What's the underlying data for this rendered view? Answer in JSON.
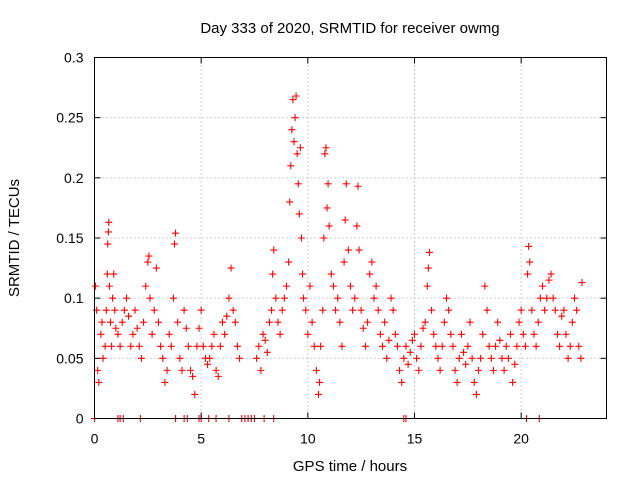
{
  "chart_data": {
    "type": "scatter",
    "title": "Day 333 of 2020, SRMTID for receiver owmg",
    "xlabel": "GPS time / hours",
    "ylabel": "SRMTID / TECUs",
    "xlim": [
      0,
      24
    ],
    "ylim": [
      0,
      0.3
    ],
    "xticks": [
      0,
      5,
      10,
      15,
      20
    ],
    "xtick_labels": [
      "0",
      "5",
      "10",
      "15",
      "20"
    ],
    "yticks": [
      0,
      0.05,
      0.1,
      0.15,
      0.2,
      0.25,
      0.3
    ],
    "ytick_labels": [
      "0",
      "0.05",
      "0.1",
      "0.15",
      "0.2",
      "0.25",
      "0.3"
    ],
    "grid": true,
    "marker": "+",
    "color": "#ff0000",
    "series": [
      {
        "name": "SRMTID",
        "points": [
          [
            0.05,
            0.11
          ],
          [
            0.1,
            0.09
          ],
          [
            0.15,
            0.04
          ],
          [
            0.2,
            0.03
          ],
          [
            0.3,
            0.07
          ],
          [
            0.35,
            0.08
          ],
          [
            0.4,
            0.05
          ],
          [
            0.5,
            0.06
          ],
          [
            0.55,
            0.09
          ],
          [
            0.6,
            0.12
          ],
          [
            0.62,
            0.145
          ],
          [
            0.65,
            0.155
          ],
          [
            0.67,
            0.163
          ],
          [
            0.7,
            0.11
          ],
          [
            0.75,
            0.08
          ],
          [
            0.8,
            0.06
          ],
          [
            0.85,
            0.1
          ],
          [
            0.9,
            0.12
          ],
          [
            0.95,
            0.09
          ],
          [
            1.0,
            0.075
          ],
          [
            1.1,
            0.07
          ],
          [
            1.2,
            0.06
          ],
          [
            1.3,
            0.08
          ],
          [
            1.4,
            0.09
          ],
          [
            1.5,
            0.1
          ],
          [
            1.6,
            0.085
          ],
          [
            1.7,
            0.06
          ],
          [
            1.8,
            0.07
          ],
          [
            1.9,
            0.09
          ],
          [
            2.0,
            0.075
          ],
          [
            2.1,
            0.06
          ],
          [
            2.2,
            0.05
          ],
          [
            2.3,
            0.08
          ],
          [
            2.4,
            0.11
          ],
          [
            2.5,
            0.13
          ],
          [
            2.55,
            0.135
          ],
          [
            2.6,
            0.1
          ],
          [
            2.7,
            0.07
          ],
          [
            2.8,
            0.09
          ],
          [
            2.9,
            0.125
          ],
          [
            3.0,
            0.08
          ],
          [
            3.1,
            0.06
          ],
          [
            3.2,
            0.05
          ],
          [
            3.3,
            0.03
          ],
          [
            3.4,
            0.04
          ],
          [
            3.5,
            0.07
          ],
          [
            3.6,
            0.06
          ],
          [
            3.7,
            0.1
          ],
          [
            3.75,
            0.145
          ],
          [
            3.8,
            0.154
          ],
          [
            3.9,
            0.08
          ],
          [
            4.0,
            0.05
          ],
          [
            4.1,
            0.04
          ],
          [
            4.2,
            0.09
          ],
          [
            4.3,
            0.075
          ],
          [
            4.4,
            0.06
          ],
          [
            4.5,
            0.04
          ],
          [
            4.6,
            0.035
          ],
          [
            4.7,
            0.02
          ],
          [
            4.8,
            0.06
          ],
          [
            4.9,
            0.075
          ],
          [
            5.0,
            0.09
          ],
          [
            5.1,
            0.06
          ],
          [
            5.2,
            0.05
          ],
          [
            5.3,
            0.045
          ],
          [
            5.4,
            0.05
          ],
          [
            5.5,
            0.06
          ],
          [
            5.6,
            0.07
          ],
          [
            5.7,
            0.04
          ],
          [
            5.8,
            0.035
          ],
          [
            5.9,
            0.06
          ],
          [
            6.0,
            0.08
          ],
          [
            6.1,
            0.07
          ],
          [
            6.2,
            0.085
          ],
          [
            6.3,
            0.1
          ],
          [
            6.4,
            0.125
          ],
          [
            6.5,
            0.09
          ],
          [
            6.6,
            0.08
          ],
          [
            6.7,
            0.06
          ],
          [
            6.8,
            0.05
          ],
          [
            7.6,
            0.05
          ],
          [
            7.7,
            0.06
          ],
          [
            7.8,
            0.04
          ],
          [
            7.9,
            0.07
          ],
          [
            8.0,
            0.065
          ],
          [
            8.1,
            0.055
          ],
          [
            8.2,
            0.08
          ],
          [
            8.3,
            0.09
          ],
          [
            8.35,
            0.12
          ],
          [
            8.4,
            0.14
          ],
          [
            8.5,
            0.1
          ],
          [
            8.6,
            0.08
          ],
          [
            8.7,
            0.07
          ],
          [
            8.8,
            0.09
          ],
          [
            8.9,
            0.1
          ],
          [
            9.0,
            0.11
          ],
          [
            9.1,
            0.13
          ],
          [
            9.15,
            0.18
          ],
          [
            9.2,
            0.21
          ],
          [
            9.25,
            0.24
          ],
          [
            9.3,
            0.265
          ],
          [
            9.35,
            0.23
          ],
          [
            9.4,
            0.25
          ],
          [
            9.45,
            0.268
          ],
          [
            9.5,
            0.22
          ],
          [
            9.55,
            0.195
          ],
          [
            9.6,
            0.17
          ],
          [
            9.65,
            0.225
          ],
          [
            9.7,
            0.15
          ],
          [
            9.75,
            0.12
          ],
          [
            9.8,
            0.1
          ],
          [
            9.9,
            0.09
          ],
          [
            10.0,
            0.07
          ],
          [
            10.1,
            0.11
          ],
          [
            10.2,
            0.08
          ],
          [
            10.3,
            0.06
          ],
          [
            10.4,
            0.04
          ],
          [
            10.5,
            0.02
          ],
          [
            10.55,
            0.03
          ],
          [
            10.6,
            0.06
          ],
          [
            10.7,
            0.09
          ],
          [
            10.75,
            0.15
          ],
          [
            10.8,
            0.22
          ],
          [
            10.85,
            0.225
          ],
          [
            10.9,
            0.175
          ],
          [
            10.95,
            0.195
          ],
          [
            11.0,
            0.16
          ],
          [
            11.1,
            0.12
          ],
          [
            11.2,
            0.11
          ],
          [
            11.3,
            0.09
          ],
          [
            11.4,
            0.1
          ],
          [
            11.5,
            0.08
          ],
          [
            11.6,
            0.06
          ],
          [
            11.7,
            0.13
          ],
          [
            11.75,
            0.165
          ],
          [
            11.8,
            0.195
          ],
          [
            11.9,
            0.14
          ],
          [
            12.0,
            0.11
          ],
          [
            12.1,
            0.09
          ],
          [
            12.2,
            0.1
          ],
          [
            12.3,
            0.16
          ],
          [
            12.35,
            0.193
          ],
          [
            12.4,
            0.14
          ],
          [
            12.5,
            0.09
          ],
          [
            12.6,
            0.075
          ],
          [
            12.7,
            0.06
          ],
          [
            12.8,
            0.08
          ],
          [
            12.9,
            0.12
          ],
          [
            13.0,
            0.13
          ],
          [
            13.1,
            0.1
          ],
          [
            13.2,
            0.11
          ],
          [
            13.3,
            0.09
          ],
          [
            13.4,
            0.07
          ],
          [
            13.5,
            0.06
          ],
          [
            13.6,
            0.08
          ],
          [
            13.7,
            0.05
          ],
          [
            13.8,
            0.065
          ],
          [
            13.9,
            0.1
          ],
          [
            14.0,
            0.09
          ],
          [
            14.1,
            0.07
          ],
          [
            14.2,
            0.06
          ],
          [
            14.3,
            0.04
          ],
          [
            14.4,
            0.03
          ],
          [
            14.5,
            0.05
          ],
          [
            14.6,
            0.06
          ],
          [
            14.7,
            0.045
          ],
          [
            14.8,
            0.055
          ],
          [
            14.9,
            0.065
          ],
          [
            15.0,
            0.07
          ],
          [
            15.1,
            0.05
          ],
          [
            15.2,
            0.04
          ],
          [
            15.3,
            0.06
          ],
          [
            15.4,
            0.075
          ],
          [
            15.5,
            0.08
          ],
          [
            15.6,
            0.11
          ],
          [
            15.65,
            0.125
          ],
          [
            15.7,
            0.138
          ],
          [
            15.8,
            0.09
          ],
          [
            15.9,
            0.07
          ],
          [
            16.0,
            0.06
          ],
          [
            16.1,
            0.05
          ],
          [
            16.2,
            0.04
          ],
          [
            16.3,
            0.06
          ],
          [
            16.4,
            0.08
          ],
          [
            16.5,
            0.1
          ],
          [
            16.6,
            0.09
          ],
          [
            16.7,
            0.07
          ],
          [
            16.8,
            0.06
          ],
          [
            16.9,
            0.04
          ],
          [
            17.0,
            0.03
          ],
          [
            17.1,
            0.05
          ],
          [
            17.2,
            0.07
          ],
          [
            17.3,
            0.055
          ],
          [
            17.4,
            0.045
          ],
          [
            17.5,
            0.06
          ],
          [
            17.6,
            0.08
          ],
          [
            17.7,
            0.05
          ],
          [
            17.8,
            0.03
          ],
          [
            17.9,
            0.02
          ],
          [
            18.0,
            0.04
          ],
          [
            18.1,
            0.05
          ],
          [
            18.2,
            0.07
          ],
          [
            18.3,
            0.11
          ],
          [
            18.4,
            0.09
          ],
          [
            18.5,
            0.06
          ],
          [
            18.6,
            0.05
          ],
          [
            18.7,
            0.04
          ],
          [
            18.8,
            0.06
          ],
          [
            18.9,
            0.08
          ],
          [
            19.0,
            0.065
          ],
          [
            19.1,
            0.05
          ],
          [
            19.2,
            0.04
          ],
          [
            19.3,
            0.06
          ],
          [
            19.4,
            0.05
          ],
          [
            19.5,
            0.07
          ],
          [
            19.6,
            0.03
          ],
          [
            19.7,
            0.045
          ],
          [
            19.8,
            0.06
          ],
          [
            19.9,
            0.08
          ],
          [
            20.0,
            0.09
          ],
          [
            20.1,
            0.07
          ],
          [
            20.2,
            0.06
          ],
          [
            20.3,
            0.12
          ],
          [
            20.35,
            0.143
          ],
          [
            20.4,
            0.13
          ],
          [
            20.5,
            0.09
          ],
          [
            20.6,
            0.07
          ],
          [
            20.7,
            0.06
          ],
          [
            20.8,
            0.08
          ],
          [
            20.9,
            0.1
          ],
          [
            21.0,
            0.11
          ],
          [
            21.1,
            0.09
          ],
          [
            21.2,
            0.1
          ],
          [
            21.3,
            0.115
          ],
          [
            21.4,
            0.12
          ],
          [
            21.5,
            0.1
          ],
          [
            21.6,
            0.09
          ],
          [
            21.7,
            0.07
          ],
          [
            21.8,
            0.06
          ],
          [
            21.9,
            0.085
          ],
          [
            22.0,
            0.09
          ],
          [
            22.1,
            0.07
          ],
          [
            22.2,
            0.05
          ],
          [
            22.3,
            0.06
          ],
          [
            22.4,
            0.08
          ],
          [
            22.5,
            0.1
          ],
          [
            22.6,
            0.09
          ],
          [
            22.7,
            0.06
          ],
          [
            22.8,
            0.05
          ],
          [
            22.85,
            0.113
          ],
          [
            0.0,
            0.0
          ],
          [
            1.1,
            0.0
          ],
          [
            1.2,
            0.0
          ],
          [
            1.35,
            0.0
          ],
          [
            2.15,
            0.0
          ],
          [
            3.8,
            0.0
          ],
          [
            4.2,
            0.0
          ],
          [
            4.35,
            0.0
          ],
          [
            4.9,
            0.0
          ],
          [
            5.0,
            0.0
          ],
          [
            5.35,
            0.0
          ],
          [
            5.7,
            0.0
          ],
          [
            6.3,
            0.0
          ],
          [
            6.9,
            0.0
          ],
          [
            7.05,
            0.0
          ],
          [
            7.2,
            0.0
          ],
          [
            7.35,
            0.0
          ],
          [
            7.5,
            0.0
          ],
          [
            7.95,
            0.0
          ],
          [
            8.4,
            0.0
          ],
          [
            14.5,
            0.0
          ],
          [
            14.6,
            0.0
          ],
          [
            20.25,
            0.0
          ],
          [
            20.85,
            0.0
          ]
        ]
      }
    ]
  }
}
